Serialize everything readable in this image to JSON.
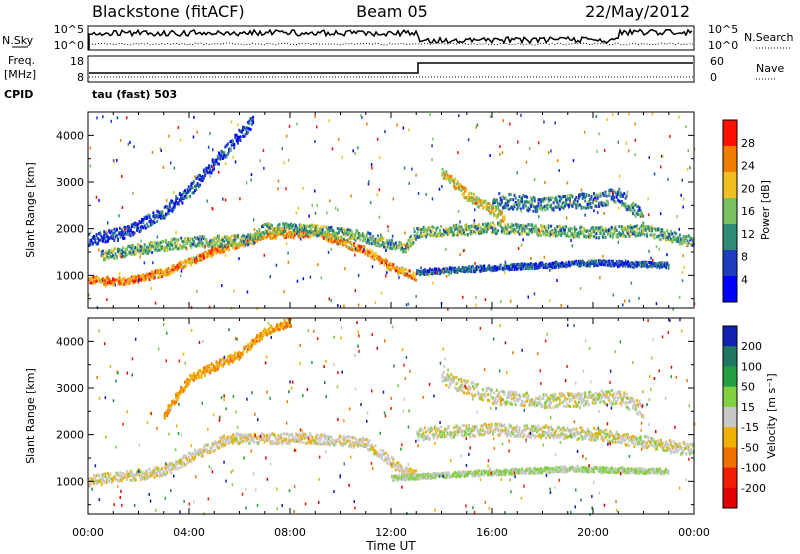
{
  "header": {
    "title": "Blackstone (fitACF)",
    "beam": "Beam 05",
    "date": "22/May/2012"
  },
  "noise_panel": {
    "left_label": "N.Sky",
    "left_ticks": [
      "10^5",
      "10^0"
    ],
    "right_ticks": [
      "10^5",
      "10^0"
    ],
    "right_label": "N.Search"
  },
  "freq_panel": {
    "left_label_1": "Freq.",
    "left_label_2": "[MHz]",
    "left_ticks": [
      "18",
      "8"
    ],
    "right_ticks": [
      "60",
      "0"
    ],
    "right_label": "Nave",
    "cpid_label": "CPID",
    "cpid_value": "tau (fast) 503"
  },
  "chart_data": [
    {
      "type": "heatmap",
      "quantity": "power",
      "ylabel": "Slant Range [km]",
      "xlabel": "",
      "xlim": [
        0,
        24
      ],
      "ylim": [
        300,
        4500
      ],
      "yticks": [
        1000,
        2000,
        3000,
        4000
      ],
      "colorbar_label": "Power [dB]",
      "colorbar_ticks": [
        "28",
        "24",
        "20",
        "16",
        "12",
        "8",
        "4"
      ],
      "colormap": [
        "#0000ff",
        "#1e3cbe",
        "#2e8b78",
        "#78c060",
        "#f0c020",
        "#f07d00",
        "#ff1000"
      ],
      "bands": [
        {
          "x": [
            0,
            1.5,
            3,
            5,
            7,
            9,
            11,
            12,
            13
          ],
          "y": [
            880,
            860,
            1050,
            1500,
            1850,
            1900,
            1500,
            1150,
            950
          ],
          "width": 160,
          "value": 24
        },
        {
          "x": [
            0.5,
            2,
            4,
            6.5,
            7,
            9,
            11,
            12.5,
            13,
            16,
            20,
            22,
            24
          ],
          "y": [
            1400,
            1550,
            1700,
            1750,
            2000,
            1950,
            1800,
            1550,
            1900,
            2000,
            1900,
            1950,
            1700
          ],
          "width": 230,
          "value": 14
        },
        {
          "x": [
            0,
            1.5,
            3,
            4,
            5.5,
            6.5
          ],
          "y": [
            1750,
            1900,
            2350,
            2800,
            3700,
            4300
          ],
          "width": 260,
          "value": 6
        },
        {
          "x": [
            14,
            15,
            16.5
          ],
          "y": [
            3200,
            2700,
            2200
          ],
          "width": 220,
          "value": 20
        },
        {
          "x": [
            16,
            18,
            20,
            21,
            22
          ],
          "y": [
            2600,
            2500,
            2600,
            2700,
            2200
          ],
          "width": 320,
          "value": 10
        },
        {
          "x": [
            13,
            16,
            20,
            23
          ],
          "y": [
            1050,
            1150,
            1250,
            1200
          ],
          "width": 120,
          "value": 8
        }
      ]
    },
    {
      "type": "heatmap",
      "quantity": "velocity",
      "ylabel": "Slant Range [km]",
      "xlabel": "Time UT",
      "xlim": [
        0,
        24
      ],
      "ylim": [
        300,
        4500
      ],
      "yticks": [
        1000,
        2000,
        3000,
        4000
      ],
      "xticks": [
        "00:00",
        "04:00",
        "08:00",
        "12:00",
        "16:00",
        "20:00",
        "00:00"
      ],
      "colorbar_label": "Velocity [m s⁻¹]",
      "colorbar_ticks": [
        "200",
        "100",
        "50",
        "15",
        "-15",
        "-50",
        "-100",
        "-200"
      ],
      "colormap": [
        "#1020b0",
        "#207860",
        "#20a040",
        "#80d040",
        "#c8c8c8",
        "#f0b000",
        "#f07000",
        "#f02000",
        "#e00000"
      ],
      "bands": [
        {
          "x": [
            0,
            1.5,
            3,
            4,
            5.5,
            7,
            9,
            11,
            12.5,
            13
          ],
          "y": [
            1000,
            1100,
            1200,
            1500,
            1900,
            1900,
            1900,
            1800,
            1200,
            1100
          ],
          "width": 220,
          "value": -10
        },
        {
          "x": [
            3,
            4,
            6,
            7,
            8
          ],
          "y": [
            2400,
            3200,
            3700,
            4200,
            4400
          ],
          "width": 180,
          "value": -70
        },
        {
          "x": [
            13,
            16,
            20,
            24
          ],
          "y": [
            2000,
            2100,
            2000,
            1650
          ],
          "width": 260,
          "value": 0
        },
        {
          "x": [
            14,
            16,
            18,
            21,
            22
          ],
          "y": [
            3200,
            2800,
            2700,
            2800,
            2500
          ],
          "width": 300,
          "value": 0
        },
        {
          "x": [
            12,
            15,
            19,
            23
          ],
          "y": [
            1050,
            1150,
            1250,
            1200
          ],
          "width": 110,
          "value": 30
        }
      ]
    }
  ]
}
